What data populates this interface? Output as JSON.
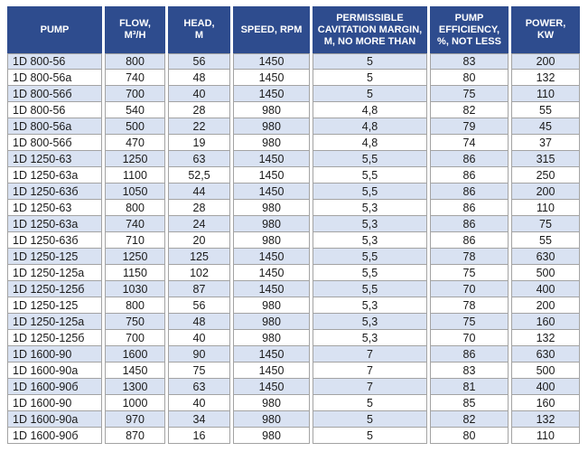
{
  "colors": {
    "header_bg": "#2e4c8e",
    "header_text": "#ffffff",
    "row_alt_bg": "#d9e2f2",
    "row_bg": "#ffffff",
    "grid_border": "#a3a3a3"
  },
  "table": {
    "columns": [
      "PUMP",
      "FLOW,\nM³/H",
      "HEAD,\nM",
      "SPEED, RPM",
      "PERMISSIBLE\nCAVITATION MARGIN,\nM, NO MORE THAN",
      "PUMP\nEFFICIENCY,\n%, NOT LESS",
      "POWER,\nKW"
    ],
    "rows": [
      [
        "1D 800-56",
        "800",
        "56",
        "1450",
        "5",
        "83",
        "200"
      ],
      [
        "1D 800-56a",
        "740",
        "48",
        "1450",
        "5",
        "80",
        "132"
      ],
      [
        "1D 800-56б",
        "700",
        "40",
        "1450",
        "5",
        "75",
        "110"
      ],
      [
        "1D 800-56",
        "540",
        "28",
        "980",
        "4,8",
        "82",
        "55"
      ],
      [
        "1D 800-56a",
        "500",
        "22",
        "980",
        "4,8",
        "79",
        "45"
      ],
      [
        "1D 800-56б",
        "470",
        "19",
        "980",
        "4,8",
        "74",
        "37"
      ],
      [
        "1D 1250-63",
        "1250",
        "63",
        "1450",
        "5,5",
        "86",
        "315"
      ],
      [
        "1D 1250-63a",
        "1100",
        "52,5",
        "1450",
        "5,5",
        "86",
        "250"
      ],
      [
        "1D 1250-63б",
        "1050",
        "44",
        "1450",
        "5,5",
        "86",
        "200"
      ],
      [
        "1D 1250-63",
        "800",
        "28",
        "980",
        "5,3",
        "86",
        "110"
      ],
      [
        "1D 1250-63a",
        "740",
        "24",
        "980",
        "5,3",
        "86",
        "75"
      ],
      [
        "1D 1250-63б",
        "710",
        "20",
        "980",
        "5,3",
        "86",
        "55"
      ],
      [
        "1D 1250-125",
        "1250",
        "125",
        "1450",
        "5,5",
        "78",
        "630"
      ],
      [
        "1D 1250-125a",
        "1150",
        "102",
        "1450",
        "5,5",
        "75",
        "500"
      ],
      [
        "1D 1250-125б",
        "1030",
        "87",
        "1450",
        "5,5",
        "70",
        "400"
      ],
      [
        "1D 1250-125",
        "800",
        "56",
        "980",
        "5,3",
        "78",
        "200"
      ],
      [
        "1D 1250-125a",
        "750",
        "48",
        "980",
        "5,3",
        "75",
        "160"
      ],
      [
        "1D 1250-125б",
        "700",
        "40",
        "980",
        "5,3",
        "70",
        "132"
      ],
      [
        "1D 1600-90",
        "1600",
        "90",
        "1450",
        "7",
        "86",
        "630"
      ],
      [
        "1D 1600-90a",
        "1450",
        "75",
        "1450",
        "7",
        "83",
        "500"
      ],
      [
        "1D 1600-90б",
        "1300",
        "63",
        "1450",
        "7",
        "81",
        "400"
      ],
      [
        "1D 1600-90",
        "1000",
        "40",
        "980",
        "5",
        "85",
        "160"
      ],
      [
        "1D 1600-90a",
        "970",
        "34",
        "980",
        "5",
        "82",
        "132"
      ],
      [
        "1D 1600-90б",
        "870",
        "16",
        "980",
        "5",
        "80",
        "110"
      ]
    ]
  }
}
